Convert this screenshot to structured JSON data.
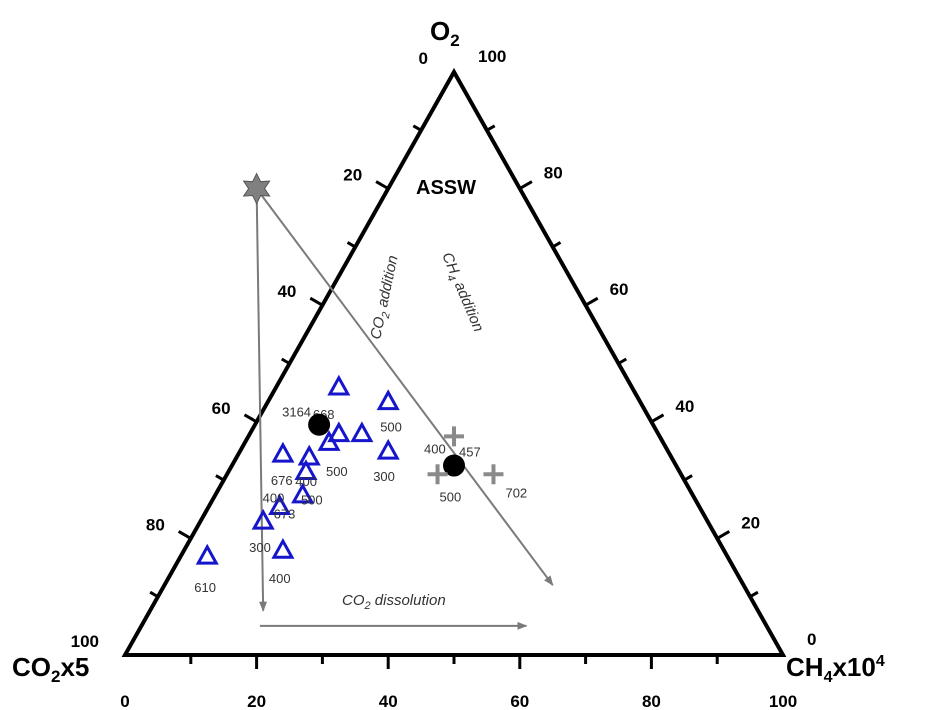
{
  "chart_data": {
    "type": "scatter",
    "subtype": "ternary",
    "components": {
      "top": "O2",
      "left": "CO2x5",
      "right": "CH4x10^4"
    },
    "apex_labels": {
      "top_main": "O",
      "top_sub": "2",
      "left_main": "CO",
      "left_sub": "2",
      "left_tail": "x5",
      "right_main": "CH",
      "right_sub": "4",
      "right_tail": "x10",
      "right_sup": "4"
    },
    "ticks": {
      "left_edge_labels": [
        "0",
        "20",
        "40",
        "60",
        "80",
        "100"
      ],
      "right_edge_labels": [
        "100",
        "80",
        "60",
        "40",
        "20",
        "0"
      ],
      "bottom_labels": [
        "0",
        "20",
        "40",
        "60",
        "80",
        "100"
      ]
    },
    "reference_point": {
      "label": "ASSW",
      "x": 20,
      "o2": 80
    },
    "triangle_points": [
      {
        "x": 12.5,
        "o2": 17,
        "label": "610"
      },
      {
        "x": 24,
        "o2": 18,
        "label": "400"
      },
      {
        "x": 21,
        "o2": 23,
        "label": "300"
      },
      {
        "x": 23.5,
        "o2": 25.5,
        "label": "673"
      },
      {
        "x": 27,
        "o2": 27.5,
        "label": "400"
      },
      {
        "x": 27.5,
        "o2": 31.5,
        "label": "500"
      },
      {
        "x": 24,
        "o2": 34.5,
        "label": "676"
      },
      {
        "x": 28,
        "o2": 34,
        "label": "400"
      },
      {
        "x": 31,
        "o2": 36.5,
        "label": "500"
      },
      {
        "x": 32.5,
        "o2": 38,
        "label": "500"
      },
      {
        "x": 36,
        "o2": 38,
        "label": "500"
      },
      {
        "x": 40,
        "o2": 35,
        "label": "300"
      },
      {
        "x": 40,
        "o2": 43.5,
        "label": "500"
      },
      {
        "x": 32.5,
        "o2": 46,
        "label": "668"
      }
    ],
    "circle_points": [
      {
        "x": 29.5,
        "o2": 39.5,
        "label": "3164"
      },
      {
        "x": 50,
        "o2": 32.5,
        "label": "400"
      }
    ],
    "plus_points": [
      {
        "x": 50,
        "o2": 37.5,
        "label": "457"
      },
      {
        "x": 47.5,
        "o2": 31,
        "label": "500"
      },
      {
        "x": 56,
        "o2": 31,
        "label": "702"
      }
    ],
    "annotations": {
      "co2_addition": {
        "main": "CO",
        "sub": "2",
        "tail": " addition"
      },
      "ch4_addition": {
        "main": "CH",
        "sub": "4",
        "tail": " addition"
      },
      "co2_dissolution": {
        "main": "CO",
        "sub": "2",
        "tail": " dissolution"
      }
    },
    "colors": {
      "triangle_marker": "#1515cc",
      "circle_marker": "#000000",
      "plus_marker": "#8a8a8a",
      "star_marker": "#808080",
      "arrow": "#7a7a7a"
    }
  }
}
